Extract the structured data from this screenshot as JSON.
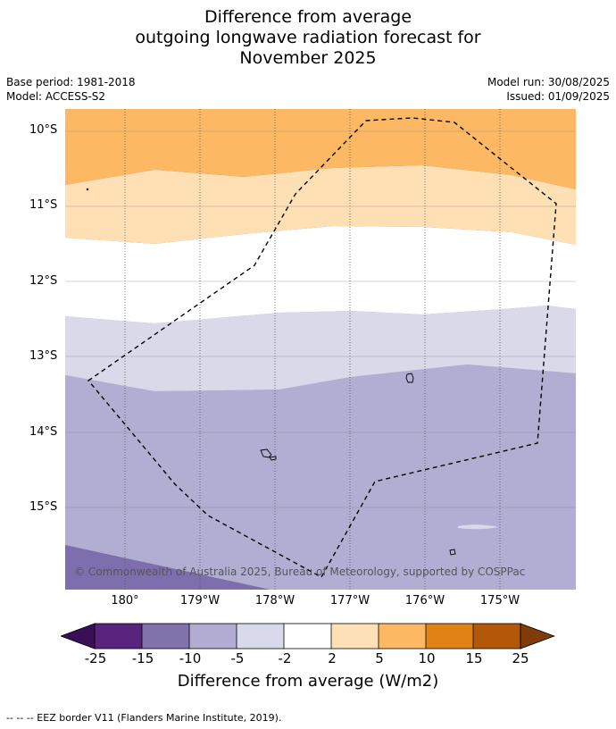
{
  "title": {
    "line1": "Difference from average",
    "line2": "outgoing longwave radiation forecast for",
    "line3": "November 2025"
  },
  "meta": {
    "base_period": "Base period: 1981-2018",
    "model": "Model: ACCESS-S2",
    "model_run": "Model run: 30/08/2025",
    "issued": "Issued: 01/09/2025"
  },
  "map": {
    "lat_labels": [
      "10°S",
      "11°S",
      "12°S",
      "13°S",
      "14°S",
      "15°S"
    ],
    "lon_labels": [
      "180°",
      "179°W",
      "178°W",
      "177°W",
      "176°W",
      "175°W"
    ],
    "copyright": "© Commonwealth of Australia 2025, Bureau of Meteorology, supported by COSPPac",
    "band_colors": {
      "dark_purple": "#7d6fad",
      "mid_purple": "#b2aed3",
      "light_purple": "#d9d9ea",
      "neutral": "#ffffff",
      "light_orange": "#fee0b4",
      "orange": "#fdb863"
    }
  },
  "colorbar": {
    "ticks": [
      "-25",
      "-15",
      "-10",
      "-5",
      "-2",
      "2",
      "5",
      "10",
      "15",
      "25"
    ],
    "colors": [
      "#3b0f56",
      "#58247e",
      "#8073ac",
      "#b2abd2",
      "#d8daeb",
      "#ffffff",
      "#fee0b6",
      "#fdb863",
      "#e08214",
      "#b35806",
      "#7f3b08"
    ],
    "title": "Difference from average (W/m2)"
  },
  "footnote": "--  --  -- EEZ border V11 (Flanders Marine Institute, 2019)."
}
